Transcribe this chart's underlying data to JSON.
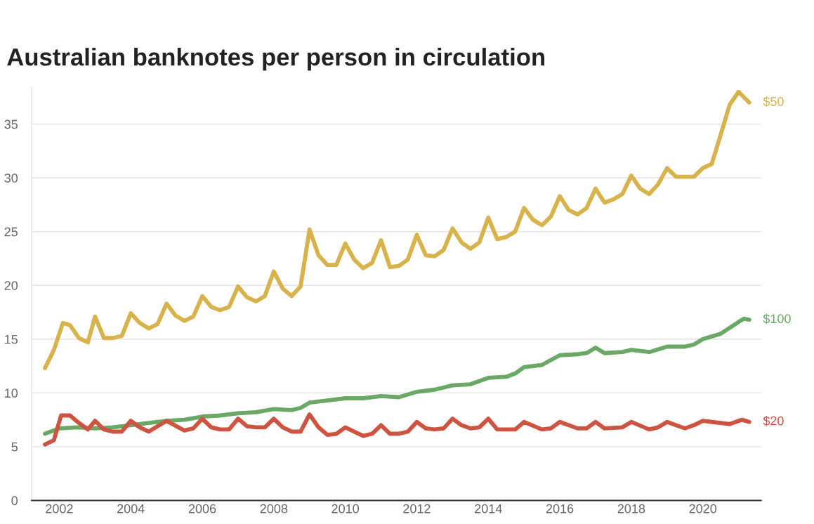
{
  "chart_data": {
    "type": "line",
    "title": "Australian banknotes per person in circulation",
    "xlim": [
      2001.23,
      2021.63
    ],
    "xticks": [
      2002,
      2004,
      2006,
      2008,
      2010,
      2012,
      2014,
      2016,
      2018,
      2020
    ],
    "yticks": [
      0,
      5,
      10,
      15,
      20,
      25,
      30,
      35
    ],
    "ylim": [
      0,
      38.5
    ],
    "grid": "y",
    "legend": false,
    "series": [
      {
        "name": "$50",
        "color": "#d8b24a",
        "x": [
          2001.6,
          2001.85,
          2002.1,
          2002.3,
          2002.55,
          2002.8,
          2003.0,
          2003.25,
          2003.5,
          2003.75,
          2004.0,
          2004.25,
          2004.5,
          2004.75,
          2005.0,
          2005.25,
          2005.5,
          2005.75,
          2006.0,
          2006.25,
          2006.5,
          2006.75,
          2007.0,
          2007.25,
          2007.5,
          2007.75,
          2008.0,
          2008.25,
          2008.5,
          2008.75,
          2009.0,
          2009.25,
          2009.5,
          2009.75,
          2010.0,
          2010.25,
          2010.5,
          2010.75,
          2011.0,
          2011.25,
          2011.5,
          2011.75,
          2012.0,
          2012.25,
          2012.5,
          2012.75,
          2013.0,
          2013.25,
          2013.5,
          2013.75,
          2014.0,
          2014.25,
          2014.5,
          2014.75,
          2015.0,
          2015.25,
          2015.5,
          2015.75,
          2016.0,
          2016.25,
          2016.5,
          2016.75,
          2017.0,
          2017.25,
          2017.5,
          2017.75,
          2018.0,
          2018.25,
          2018.5,
          2018.75,
          2019.0,
          2019.25,
          2019.5,
          2019.75,
          2020.0,
          2020.25,
          2020.5,
          2020.75,
          2021.0,
          2021.3
        ],
        "values": [
          12.3,
          14.0,
          16.5,
          16.3,
          15.1,
          14.7,
          17.1,
          15.1,
          15.1,
          15.3,
          17.4,
          16.5,
          16.0,
          16.4,
          18.3,
          17.2,
          16.7,
          17.1,
          19.0,
          18.0,
          17.7,
          18.0,
          19.9,
          18.9,
          18.5,
          19.0,
          21.3,
          19.7,
          19.0,
          19.9,
          25.2,
          22.8,
          21.9,
          21.9,
          23.9,
          22.4,
          21.6,
          22.1,
          24.2,
          21.7,
          21.8,
          22.4,
          24.7,
          22.8,
          22.7,
          23.3,
          25.3,
          24.0,
          23.4,
          24.0,
          26.3,
          24.3,
          24.5,
          25.0,
          27.2,
          26.1,
          25.6,
          26.4,
          28.3,
          27.0,
          26.6,
          27.2,
          29.0,
          27.7,
          28.0,
          28.5,
          30.2,
          29.0,
          28.5,
          29.4,
          30.9,
          30.1,
          30.1,
          30.1,
          30.9,
          31.3,
          34.0,
          36.8,
          38.0,
          37.0
        ]
      },
      {
        "name": "$100",
        "color": "#6aa865",
        "x": [
          2001.6,
          2002.0,
          2002.5,
          2003.0,
          2003.5,
          2004.0,
          2004.5,
          2005.0,
          2005.5,
          2006.0,
          2006.5,
          2007.0,
          2007.5,
          2008.0,
          2008.5,
          2008.75,
          2009.0,
          2009.5,
          2010.0,
          2010.5,
          2011.0,
          2011.5,
          2012.0,
          2012.5,
          2013.0,
          2013.5,
          2014.0,
          2014.5,
          2014.75,
          2015.0,
          2015.5,
          2016.0,
          2016.5,
          2016.75,
          2017.0,
          2017.25,
          2017.75,
          2018.0,
          2018.5,
          2019.0,
          2019.5,
          2019.75,
          2020.0,
          2020.5,
          2021.0,
          2021.15,
          2021.3
        ],
        "values": [
          6.2,
          6.7,
          6.8,
          6.7,
          6.8,
          7.0,
          7.2,
          7.4,
          7.5,
          7.8,
          7.9,
          8.1,
          8.2,
          8.5,
          8.4,
          8.6,
          9.1,
          9.3,
          9.5,
          9.5,
          9.7,
          9.6,
          10.1,
          10.3,
          10.7,
          10.8,
          11.4,
          11.5,
          11.8,
          12.4,
          12.6,
          13.5,
          13.6,
          13.7,
          14.2,
          13.7,
          13.8,
          14.0,
          13.8,
          14.3,
          14.3,
          14.5,
          15.0,
          15.5,
          16.6,
          16.9,
          16.8
        ]
      },
      {
        "name": "$20",
        "color": "#cc5441",
        "x": [
          2001.6,
          2001.85,
          2002.05,
          2002.3,
          2002.55,
          2002.8,
          2003.0,
          2003.25,
          2003.5,
          2003.75,
          2004.0,
          2004.25,
          2004.5,
          2004.75,
          2005.0,
          2005.5,
          2005.75,
          2006.0,
          2006.25,
          2006.5,
          2006.75,
          2007.0,
          2007.25,
          2007.5,
          2007.75,
          2008.0,
          2008.25,
          2008.5,
          2008.75,
          2009.0,
          2009.25,
          2009.5,
          2009.75,
          2010.0,
          2010.5,
          2010.75,
          2011.0,
          2011.25,
          2011.5,
          2011.75,
          2012.0,
          2012.25,
          2012.5,
          2012.75,
          2013.0,
          2013.25,
          2013.5,
          2013.75,
          2014.0,
          2014.25,
          2014.5,
          2014.75,
          2015.0,
          2015.5,
          2015.75,
          2016.0,
          2016.5,
          2016.75,
          2017.0,
          2017.25,
          2017.75,
          2018.0,
          2018.5,
          2018.75,
          2019.0,
          2019.5,
          2019.75,
          2020.0,
          2020.5,
          2020.75,
          2021.0,
          2021.1,
          2021.3
        ],
        "values": [
          5.2,
          5.6,
          7.9,
          7.9,
          7.2,
          6.6,
          7.4,
          6.6,
          6.4,
          6.4,
          7.4,
          6.8,
          6.4,
          6.9,
          7.4,
          6.5,
          6.7,
          7.6,
          6.8,
          6.6,
          6.6,
          7.6,
          6.9,
          6.8,
          6.8,
          7.6,
          6.8,
          6.4,
          6.4,
          8.0,
          6.8,
          6.1,
          6.2,
          6.8,
          6.0,
          6.2,
          7.0,
          6.2,
          6.2,
          6.4,
          7.3,
          6.7,
          6.6,
          6.7,
          7.6,
          7.0,
          6.7,
          6.8,
          7.6,
          6.6,
          6.6,
          6.6,
          7.3,
          6.6,
          6.7,
          7.3,
          6.7,
          6.7,
          7.3,
          6.7,
          6.8,
          7.3,
          6.6,
          6.8,
          7.3,
          6.7,
          7.0,
          7.4,
          7.2,
          7.1,
          7.4,
          7.5,
          7.3
        ]
      }
    ]
  }
}
